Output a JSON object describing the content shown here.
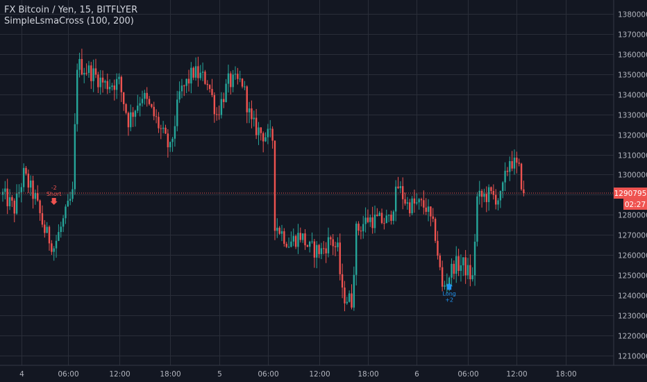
{
  "header": {
    "symbol_line": "FX Bitcoin / Yen, 15, BITFLYER",
    "indicator_line": "SimpleLsmaCross (100, 200)"
  },
  "colors": {
    "background": "#131722",
    "grid": "#2a2e39",
    "up": "#26a69a",
    "down": "#ef5350",
    "text": "#b2b5be",
    "last_price_line": "#ef5350",
    "long_signal": "#2196f3",
    "short_signal": "#ef5350"
  },
  "chart_data": {
    "type": "candlestick",
    "y_axis_ticks": [
      1210000,
      1220000,
      1230000,
      1240000,
      1250000,
      1260000,
      1270000,
      1280000,
      1290000,
      1300000,
      1310000,
      1320000,
      1330000,
      1340000,
      1350000,
      1360000,
      1370000,
      1380000
    ],
    "ylim": [
      1205000,
      1387000
    ],
    "x_axis_ticks": [
      "4",
      "06:00",
      "12:00",
      "18:00",
      "5",
      "06:00",
      "12:00",
      "18:00",
      "6",
      "06:00",
      "12:00",
      "18:00"
    ],
    "last_price": {
      "value": "1290795",
      "countdown": "02:27",
      "numeric": 1290795
    },
    "signals": [
      {
        "type": "short",
        "label_top": "-2",
        "label_main": "Short",
        "price": 1287000,
        "bar": 22
      },
      {
        "type": "long",
        "label_top": "Long",
        "label_main": "+2",
        "price": 1244000,
        "bar": 192
      }
    ],
    "path": [
      [
        0,
        1290000
      ],
      [
        5,
        1283000
      ],
      [
        9,
        1300000
      ],
      [
        14,
        1288000
      ],
      [
        18,
        1272000
      ],
      [
        22,
        1264000
      ],
      [
        27,
        1280000
      ],
      [
        30,
        1290000
      ],
      [
        32,
        1355000
      ],
      [
        38,
        1351000
      ],
      [
        44,
        1345000
      ],
      [
        50,
        1346000
      ],
      [
        54,
        1327000
      ],
      [
        60,
        1340000
      ],
      [
        66,
        1327000
      ],
      [
        72,
        1312000
      ],
      [
        76,
        1340000
      ],
      [
        82,
        1351000
      ],
      [
        88,
        1347000
      ],
      [
        92,
        1330000
      ],
      [
        97,
        1346000
      ],
      [
        103,
        1346000
      ],
      [
        107,
        1325000
      ],
      [
        112,
        1320000
      ],
      [
        116,
        1318000
      ],
      [
        117,
        1276000
      ],
      [
        123,
        1266000
      ],
      [
        128,
        1270000
      ],
      [
        132,
        1263000
      ],
      [
        137,
        1262000
      ],
      [
        141,
        1268000
      ],
      [
        144,
        1262000
      ],
      [
        146,
        1240000
      ],
      [
        150,
        1237000
      ],
      [
        152,
        1272000
      ],
      [
        157,
        1278000
      ],
      [
        162,
        1277000
      ],
      [
        166,
        1277000
      ],
      [
        170,
        1294000
      ],
      [
        174,
        1285000
      ],
      [
        179,
        1285000
      ],
      [
        182,
        1284000
      ],
      [
        186,
        1270000
      ],
      [
        189,
        1243000
      ],
      [
        194,
        1255000
      ],
      [
        198,
        1255000
      ],
      [
        202,
        1248000
      ],
      [
        204,
        1288000
      ],
      [
        209,
        1290000
      ],
      [
        214,
        1288000
      ],
      [
        218,
        1308000
      ],
      [
        222,
        1302000
      ],
      [
        224,
        1290795
      ]
    ]
  }
}
